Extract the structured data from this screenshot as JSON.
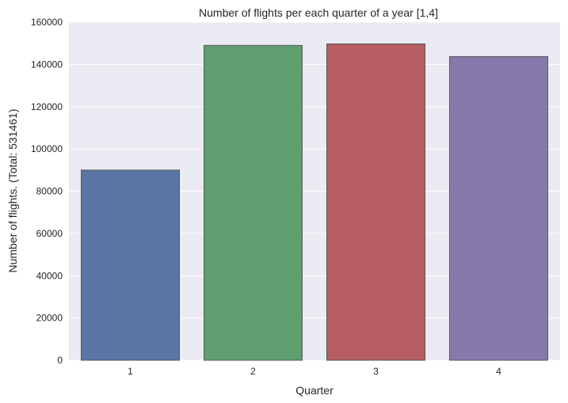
{
  "chart_data": {
    "type": "bar",
    "title": "Number of flights per each quarter of a year [1,4]",
    "xlabel": "Quarter",
    "ylabel": "Number of flights. (Total: 531461)",
    "categories": [
      "1",
      "2",
      "3",
      "4"
    ],
    "values": [
      90000,
      149000,
      149700,
      143700
    ],
    "ylim": [
      0,
      160000
    ],
    "yticks": [
      0,
      20000,
      40000,
      60000,
      80000,
      100000,
      120000,
      140000,
      160000
    ],
    "grid": true,
    "legend": "none",
    "colors": [
      "#5875a4",
      "#5f9e6e",
      "#b55d60",
      "#857aab"
    ],
    "background": "#eaeaf2",
    "edge_color": "#595959"
  }
}
